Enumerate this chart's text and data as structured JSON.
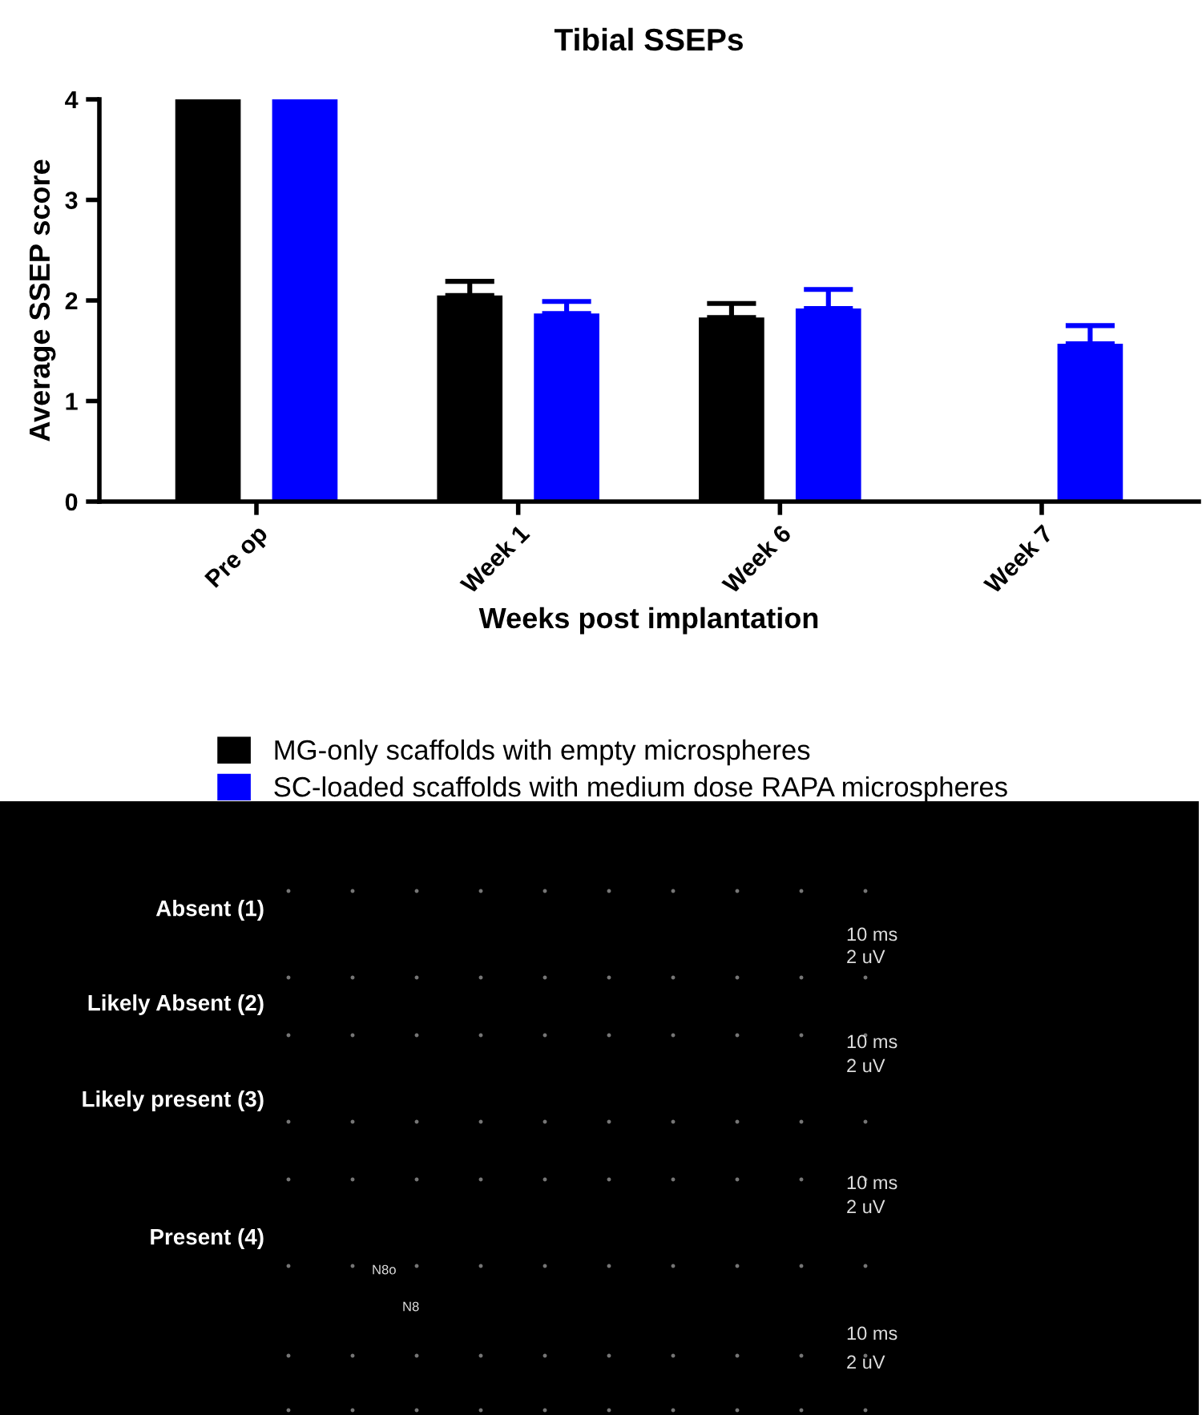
{
  "chart_data": [
    {
      "type": "bar",
      "title": "Tibial SSEPs",
      "xlabel": "Weeks post implantation",
      "ylabel": "Average SSEP score",
      "categories": [
        "Pre op",
        "Week 1",
        "Week 6",
        "Week 7"
      ],
      "series": [
        {
          "name": "MG-only scaffolds with empty microspheres",
          "color": "#000000",
          "values": [
            4,
            2.05,
            1.83,
            null
          ],
          "errors": [
            null,
            [
              2.05,
              2.19
            ],
            [
              1.83,
              1.97
            ],
            null
          ]
        },
        {
          "name": "SC-loaded scaffolds with medium dose RAPA microspheres",
          "color": "#0000ff",
          "values": [
            4,
            1.87,
            1.92,
            1.57
          ],
          "errors": [
            null,
            [
              1.87,
              1.99
            ],
            [
              1.92,
              2.11
            ],
            [
              1.57,
              1.75
            ]
          ]
        }
      ],
      "ylim": [
        0,
        4
      ],
      "yticks": [
        0,
        1,
        2,
        3,
        4
      ],
      "grid": false,
      "legend": "bottom"
    },
    {
      "type": "other",
      "annotations": [
        "Absent (1)",
        "10 ms",
        "2 uV",
        "Likely Absent (2)",
        "10 ms",
        "2 uV",
        "Likely present (3)",
        "10 ms",
        "2 uV",
        "Present (4)",
        "N8o",
        "N8",
        "10 ms",
        "2 uV"
      ]
    }
  ]
}
